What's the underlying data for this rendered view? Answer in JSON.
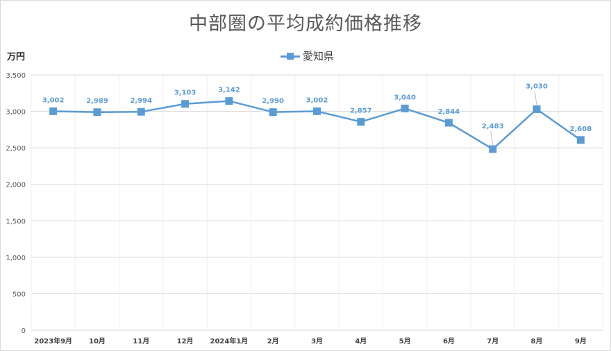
{
  "chart_data": {
    "type": "line",
    "title": "中部圏の平均成約価格推移",
    "ylabel": "万円",
    "xlabel": "",
    "categories": [
      "2023年9月",
      "10月",
      "11月",
      "12月",
      "2024年1月",
      "2月",
      "3月",
      "4月",
      "5月",
      "6月",
      "7月",
      "8月",
      "9月"
    ],
    "series": [
      {
        "name": "愛知県",
        "color": "#5b9bd5",
        "values": [
          3002,
          2989,
          2994,
          3103,
          3142,
          2990,
          3002,
          2857,
          3040,
          2844,
          2483,
          3030,
          2608
        ],
        "labels": [
          "3,002",
          "2,989",
          "2,994",
          "3,103",
          "3,142",
          "2,990",
          "3,002",
          "2,857",
          "3,040",
          "2,844",
          "2,483",
          "3,030",
          "2,608"
        ]
      }
    ],
    "ylim": [
      0,
      3500
    ],
    "yticks": [
      0,
      500,
      1000,
      1500,
      2000,
      2500,
      3000,
      3500
    ],
    "ytick_labels": [
      "0",
      "500",
      "1,000",
      "1,500",
      "2,000",
      "2,500",
      "3,000",
      "3,500"
    ],
    "grid": true,
    "legend": "top-center"
  }
}
